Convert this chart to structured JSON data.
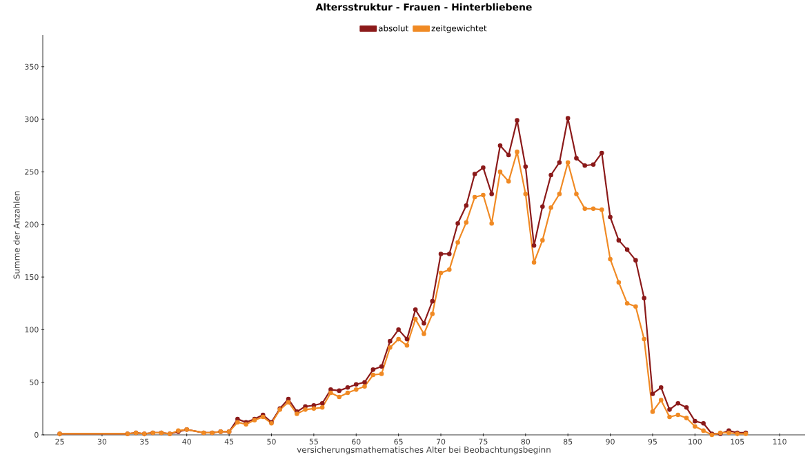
{
  "chart_data": {
    "type": "line",
    "title": "Altersstruktur - Frauen - Hinterbliebene",
    "xlabel": "versicherungsmathematisches Alter bei Beobachtungsbeginn",
    "ylabel": "Summe der Anzahlen",
    "x": [
      25,
      33,
      34,
      35,
      36,
      37,
      38,
      39,
      40,
      42,
      43,
      44,
      45,
      46,
      47,
      48,
      49,
      50,
      51,
      52,
      53,
      54,
      55,
      56,
      57,
      58,
      59,
      60,
      61,
      62,
      63,
      64,
      65,
      66,
      67,
      68,
      69,
      70,
      71,
      72,
      73,
      74,
      75,
      76,
      77,
      78,
      79,
      80,
      81,
      82,
      83,
      84,
      85,
      86,
      87,
      88,
      89,
      90,
      91,
      92,
      93,
      94,
      95,
      96,
      97,
      98,
      99,
      100,
      101,
      102,
      103,
      104,
      105,
      106
    ],
    "series": [
      {
        "name": "absolut",
        "color": "#8b1a1a",
        "values": [
          1,
          1,
          2,
          1,
          2,
          2,
          1,
          3,
          5,
          2,
          2,
          3,
          3,
          15,
          12,
          15,
          19,
          12,
          25,
          34,
          22,
          27,
          28,
          30,
          43,
          42,
          45,
          48,
          50,
          62,
          65,
          89,
          100,
          91,
          119,
          106,
          127,
          172,
          172,
          201,
          218,
          248,
          254,
          229,
          275,
          266,
          299,
          255,
          180,
          217,
          247,
          259,
          301,
          263,
          256,
          257,
          268,
          207,
          185,
          176,
          166,
          130,
          39,
          45,
          24,
          30,
          26,
          13,
          11,
          1,
          1,
          4,
          2,
          2
        ]
      },
      {
        "name": "zeitgewichtet",
        "color": "#f08a24",
        "values": [
          1,
          1,
          2,
          1,
          2,
          2,
          1,
          4,
          5,
          2,
          2,
          3,
          3,
          12,
          10,
          14,
          17,
          11,
          24,
          31,
          20,
          24,
          25,
          26,
          40,
          36,
          40,
          43,
          46,
          57,
          58,
          83,
          91,
          85,
          110,
          96,
          115,
          154,
          157,
          183,
          202,
          226,
          228,
          201,
          250,
          241,
          269,
          229,
          164,
          185,
          216,
          229,
          259,
          229,
          215,
          215,
          214,
          167,
          145,
          125,
          122,
          91,
          22,
          33,
          17,
          19,
          16,
          8,
          4,
          0,
          2,
          2,
          1,
          1
        ]
      }
    ],
    "xlim": [
      23,
      113
    ],
    "ylim": [
      0,
      380
    ],
    "xticks": [
      25,
      30,
      35,
      40,
      45,
      50,
      55,
      60,
      65,
      70,
      75,
      80,
      85,
      90,
      95,
      100,
      105,
      110
    ],
    "yticks": [
      0,
      50,
      100,
      150,
      200,
      250,
      300,
      350
    ],
    "legend": "top",
    "marker": "circle",
    "line_style": "solid",
    "grid": false
  }
}
